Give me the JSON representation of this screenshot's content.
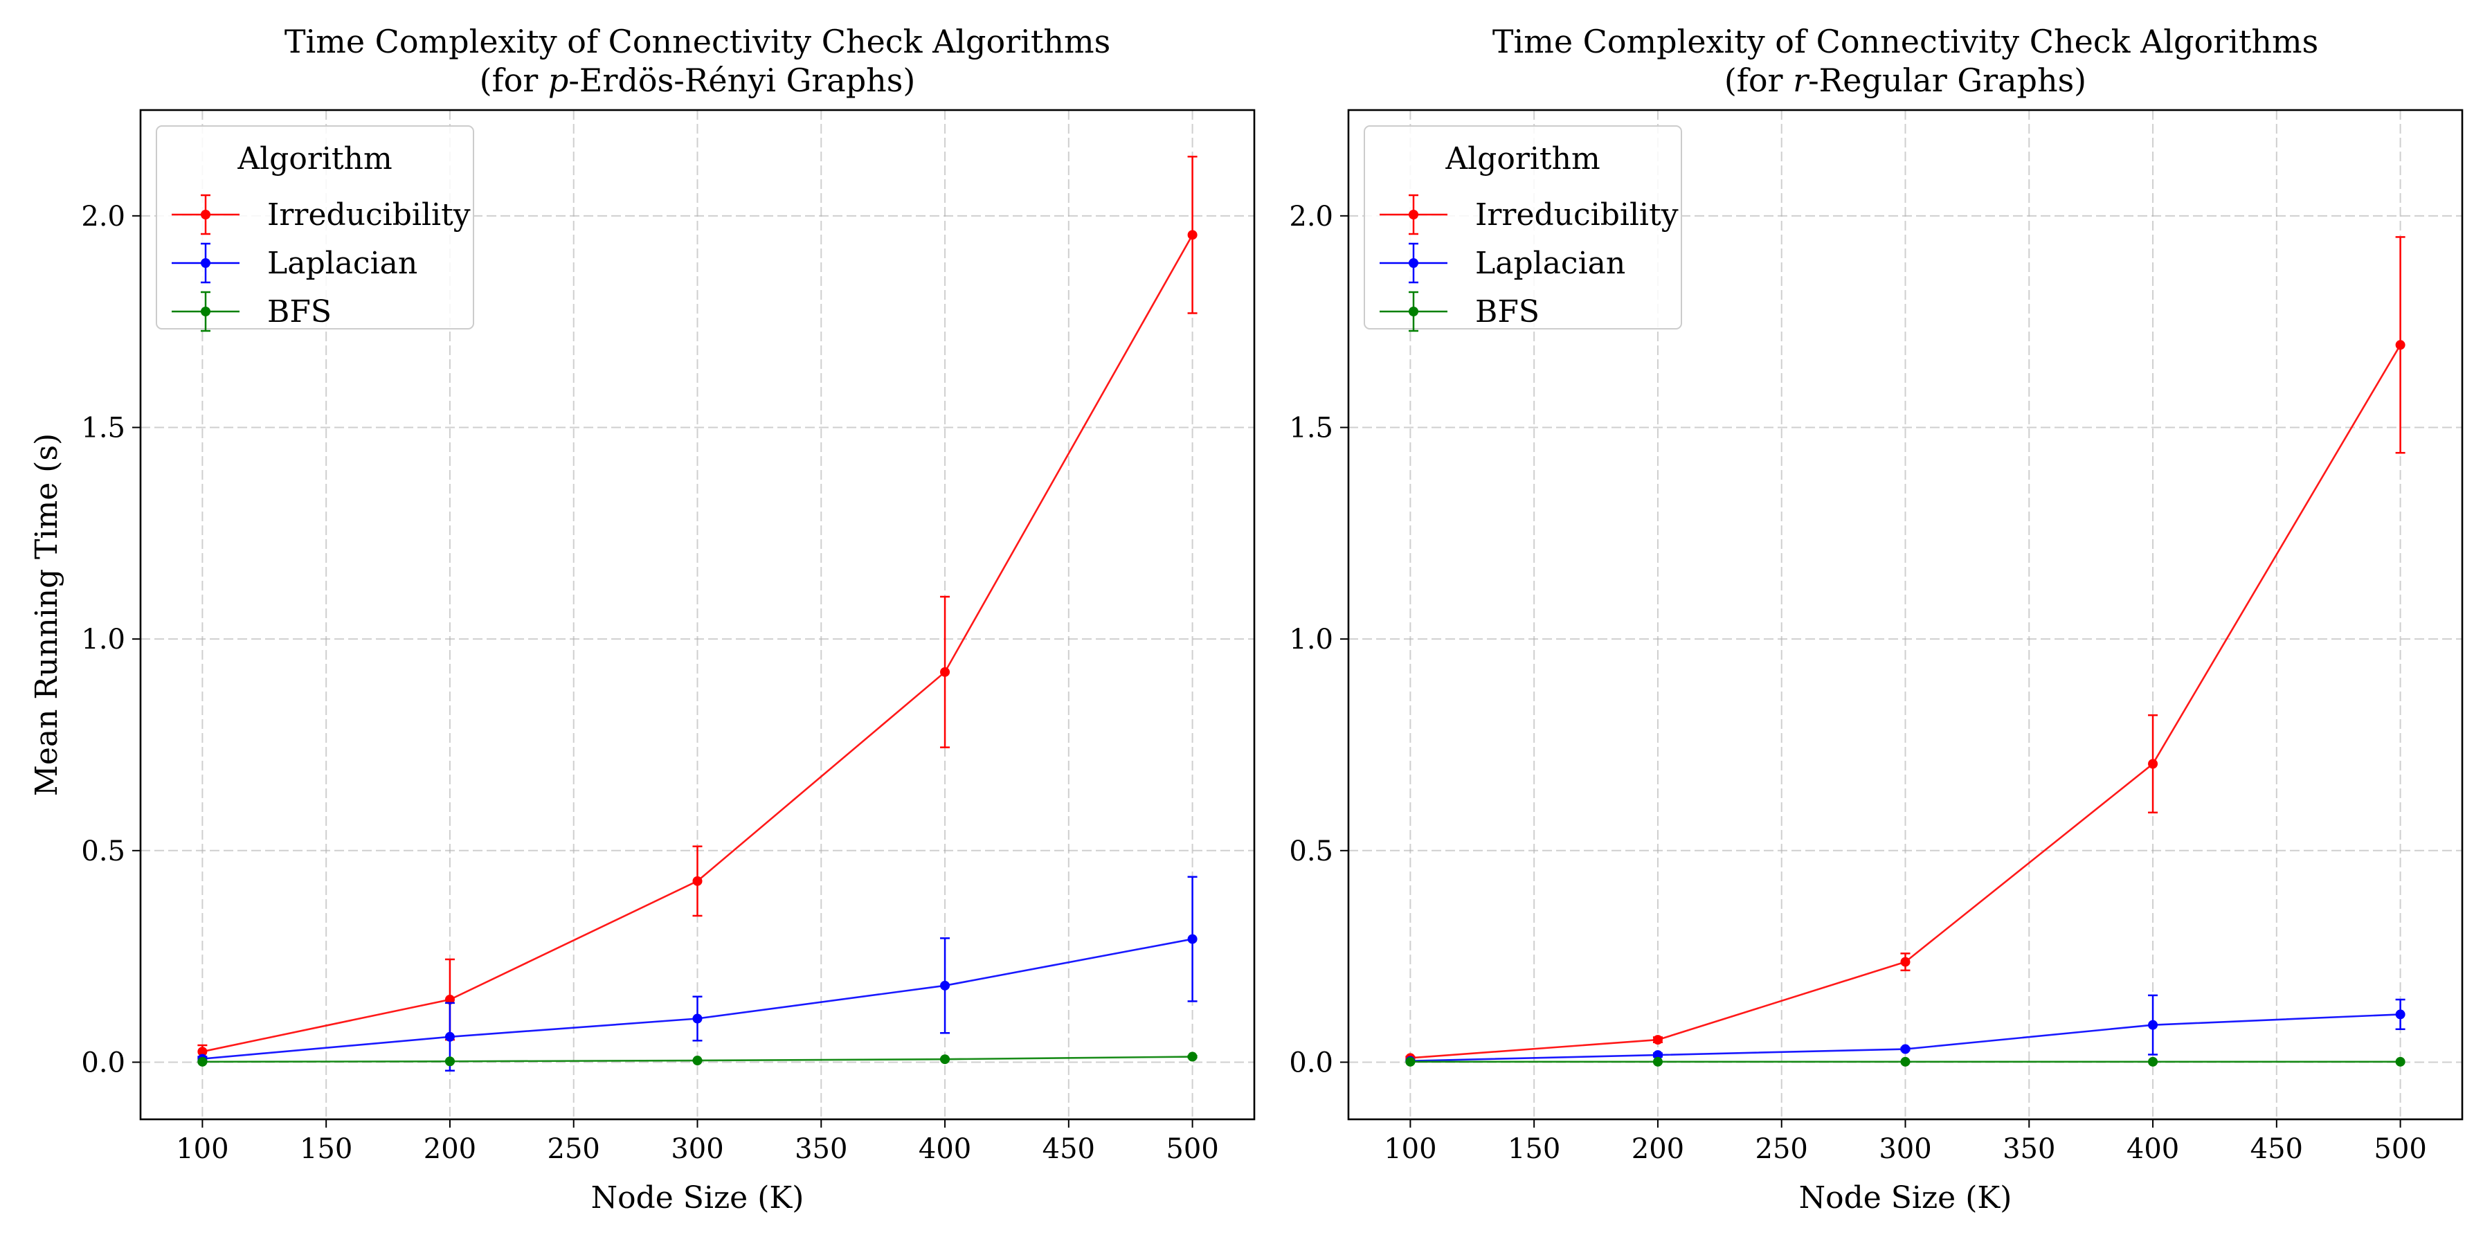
{
  "chart_data": [
    {
      "type": "line",
      "title_line1": "Time Complexity of Connectivity Check Algorithms",
      "title_line2_prefix": "(for ",
      "title_line2_var": "p",
      "title_line2_suffix": "-Erdös-Rényi Graphs)",
      "xlabel": "Node Size (K)",
      "ylabel": "Mean Running Time (s)",
      "xlim": [
        75,
        525
      ],
      "ylim": [
        -0.135,
        2.25
      ],
      "xticks": [
        100,
        150,
        200,
        250,
        300,
        350,
        400,
        450,
        500
      ],
      "yticks": [
        0.0,
        0.5,
        1.0,
        1.5,
        2.0
      ],
      "xtick_labels": [
        "100",
        "150",
        "200",
        "250",
        "300",
        "350",
        "400",
        "450",
        "500"
      ],
      "ytick_labels": [
        "0.0",
        "0.5",
        "1.0",
        "1.5",
        "2.0"
      ],
      "grid": true,
      "legend_title": "Algorithm",
      "legend_position": "top-left",
      "x": [
        100,
        200,
        300,
        400,
        500
      ],
      "series": [
        {
          "name": "Irreducibility",
          "color": "#ff0000",
          "values": [
            0.025,
            0.148,
            0.428,
            0.922,
            1.955
          ],
          "errors": [
            0.015,
            0.095,
            0.082,
            0.178,
            0.185
          ]
        },
        {
          "name": "Laplacian",
          "color": "#0000ff",
          "values": [
            0.008,
            0.06,
            0.103,
            0.181,
            0.291
          ],
          "errors": [
            0.005,
            0.08,
            0.052,
            0.112,
            0.147
          ]
        },
        {
          "name": "BFS",
          "color": "#008000",
          "values": [
            0.001,
            0.002,
            0.004,
            0.007,
            0.013
          ],
          "errors": [
            0.001,
            0.001,
            0.001,
            0.001,
            0.002
          ]
        }
      ]
    },
    {
      "type": "line",
      "title_line1": "Time Complexity of Connectivity Check Algorithms",
      "title_line2_prefix": "(for ",
      "title_line2_var": "r",
      "title_line2_suffix": "-Regular Graphs)",
      "xlabel": "Node Size (K)",
      "ylabel": "",
      "xlim": [
        75,
        525
      ],
      "ylim": [
        -0.135,
        2.25
      ],
      "xticks": [
        100,
        150,
        200,
        250,
        300,
        350,
        400,
        450,
        500
      ],
      "yticks": [
        0.0,
        0.5,
        1.0,
        1.5,
        2.0
      ],
      "xtick_labels": [
        "100",
        "150",
        "200",
        "250",
        "300",
        "350",
        "400",
        "450",
        "500"
      ],
      "ytick_labels": [
        "0.0",
        "0.5",
        "1.0",
        "1.5",
        "2.0"
      ],
      "grid": true,
      "legend_title": "Algorithm",
      "legend_position": "top-left",
      "x": [
        100,
        200,
        300,
        400,
        500
      ],
      "series": [
        {
          "name": "Irreducibility",
          "color": "#ff0000",
          "values": [
            0.01,
            0.053,
            0.237,
            0.705,
            1.695
          ],
          "errors": [
            0.003,
            0.006,
            0.02,
            0.115,
            0.255
          ]
        },
        {
          "name": "Laplacian",
          "color": "#0000ff",
          "values": [
            0.003,
            0.017,
            0.031,
            0.088,
            0.113
          ],
          "errors": [
            0.001,
            0.004,
            0.003,
            0.07,
            0.035
          ]
        },
        {
          "name": "BFS",
          "color": "#008000",
          "values": [
            0.001,
            0.001,
            0.001,
            0.001,
            0.001
          ],
          "errors": [
            0.0,
            0.0,
            0.0,
            0.0,
            0.0
          ]
        }
      ]
    }
  ]
}
